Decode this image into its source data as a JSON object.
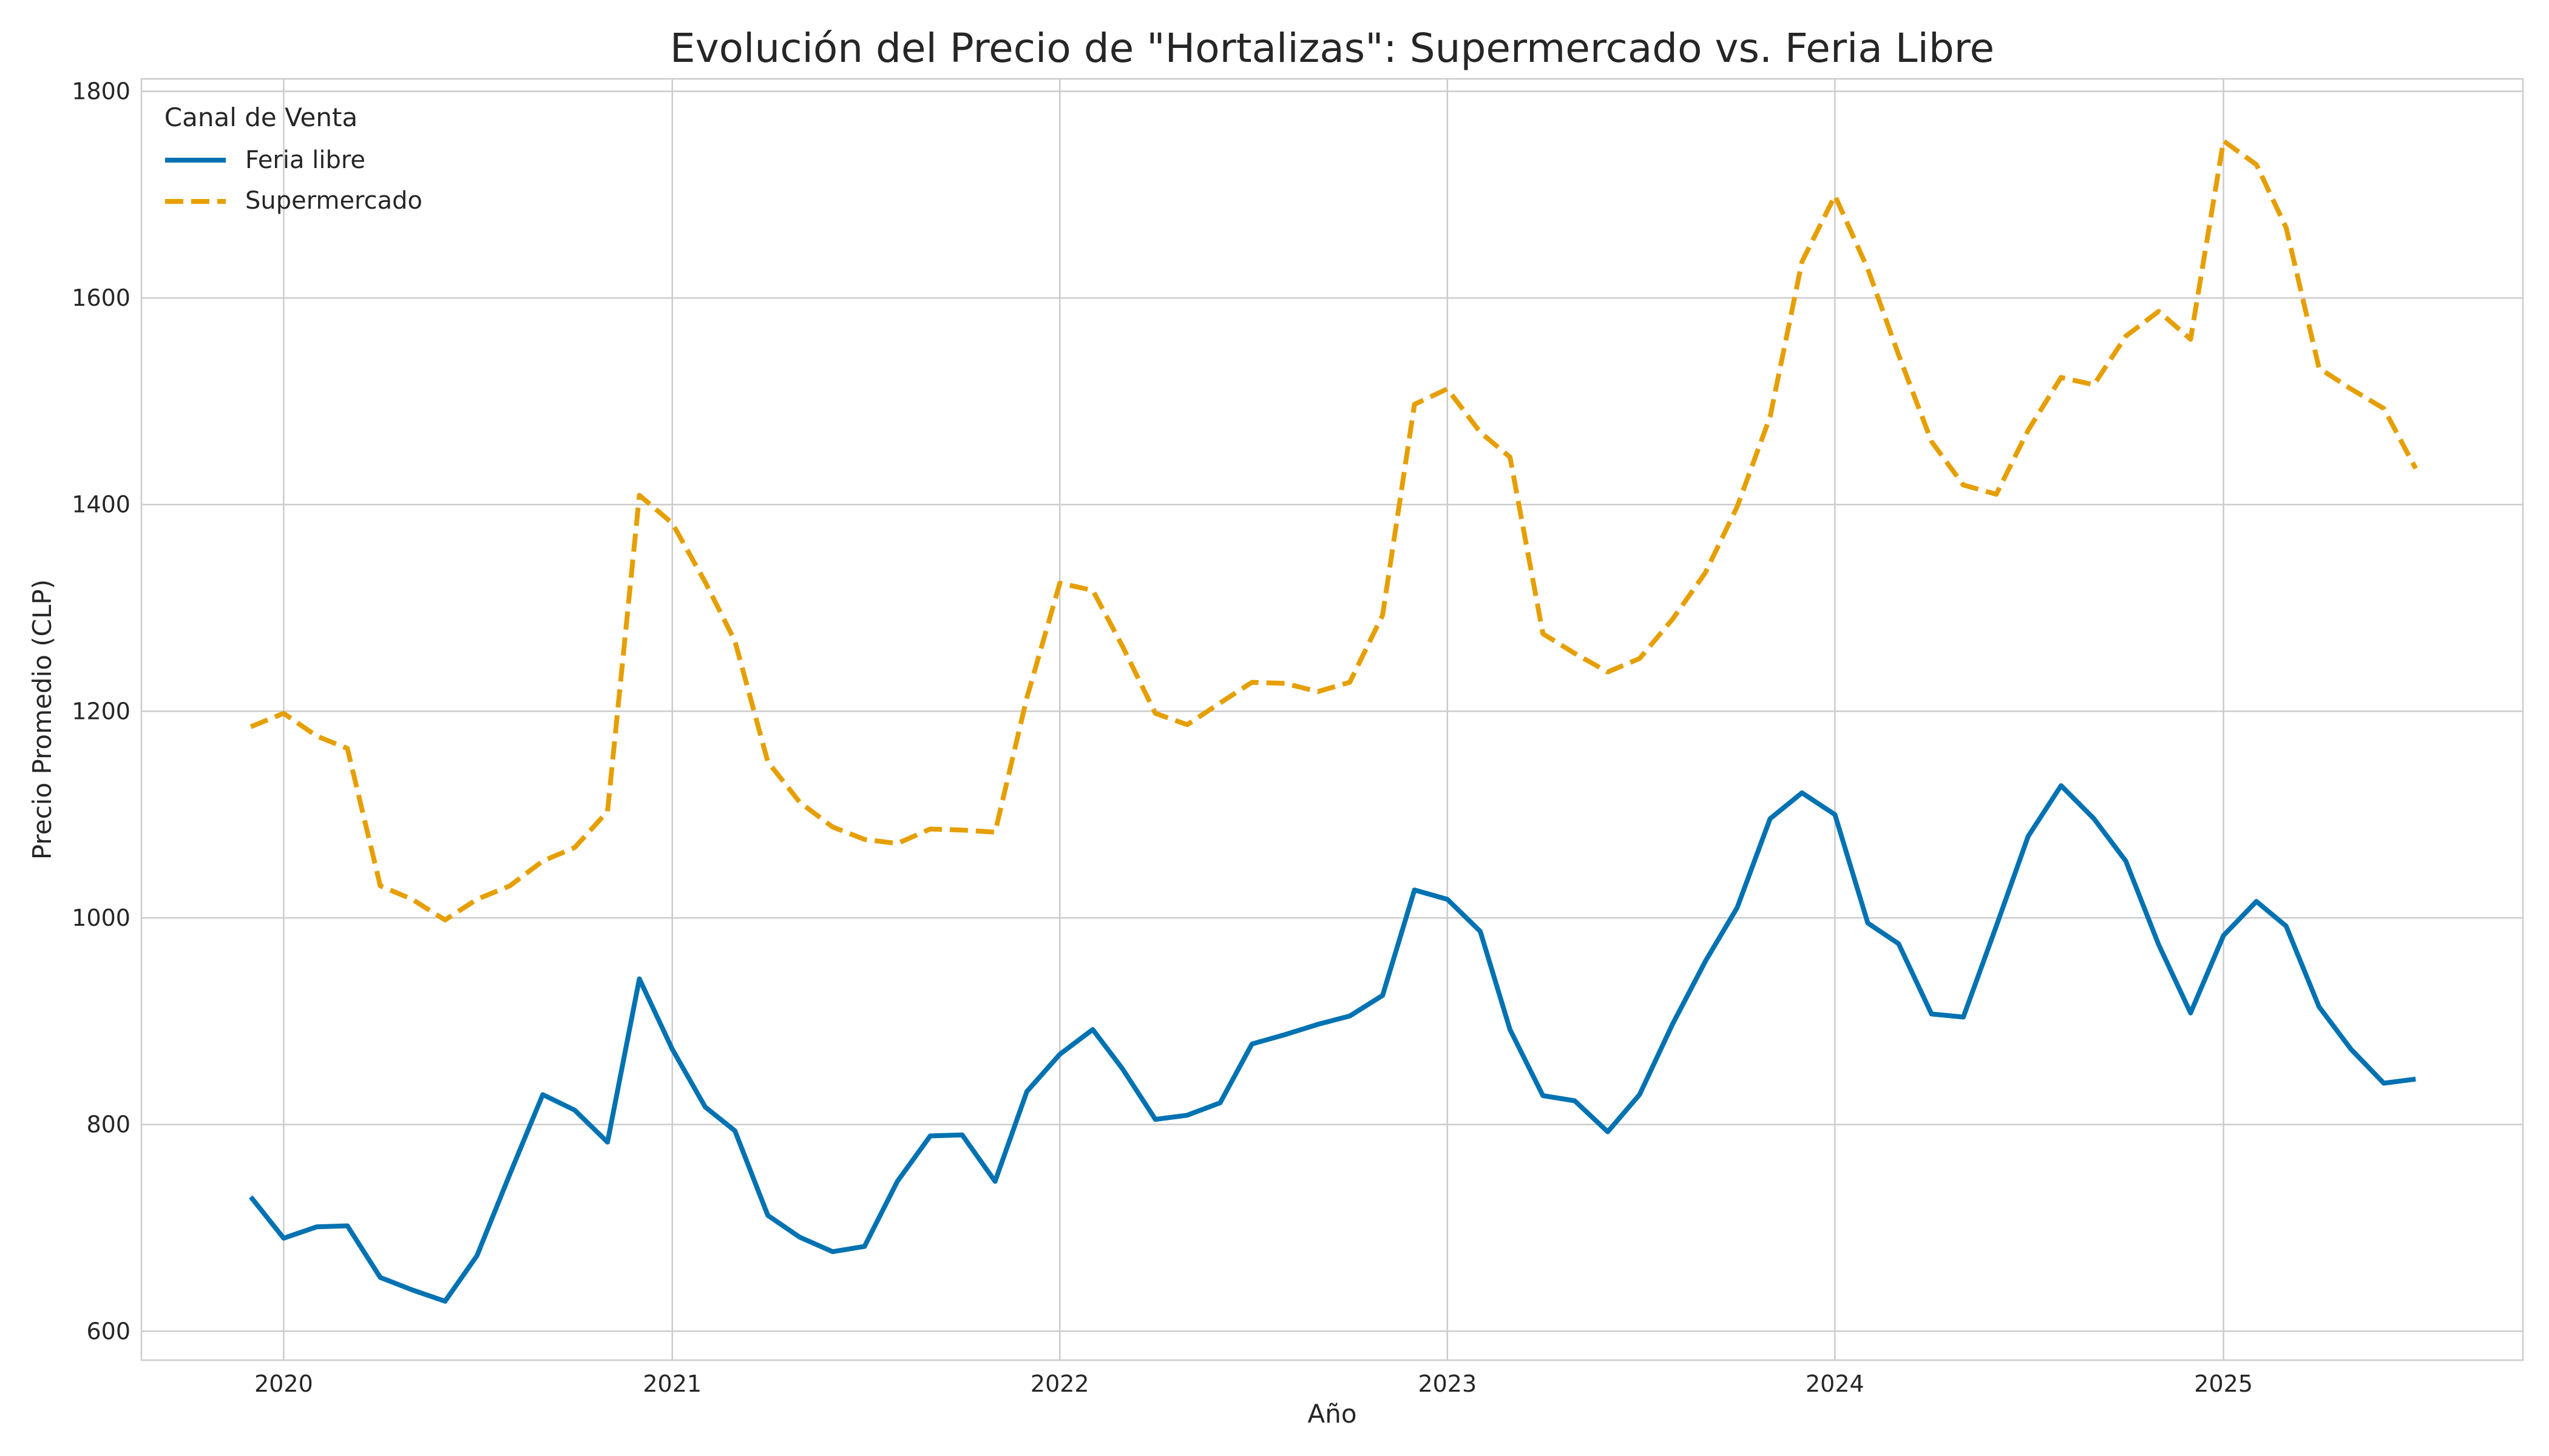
{
  "chart_data": {
    "type": "line",
    "title": "Evolución del Precio de \"Hortalizas\": Supermercado vs. Feria Libre",
    "xlabel": "Año",
    "ylabel": "Precio Promedio (CLP)",
    "xlim": [
      "2019-08-20",
      "2025-10-10"
    ],
    "ylim": [
      572,
      1812
    ],
    "grid": true,
    "x_ticks": [
      "2020",
      "2021",
      "2022",
      "2023",
      "2024",
      "2025"
    ],
    "y_ticks": [
      600,
      800,
      1000,
      1200,
      1400,
      1600,
      1800
    ],
    "legend": {
      "title": "Canal de Venta",
      "position": "top-left"
    },
    "x": [
      "2019-12-01",
      "2020-01-01",
      "2020-02-01",
      "2020-03-01",
      "2020-04-01",
      "2020-05-01",
      "2020-06-01",
      "2020-07-01",
      "2020-08-01",
      "2020-09-01",
      "2020-10-01",
      "2020-11-01",
      "2020-12-01",
      "2021-01-01",
      "2021-02-01",
      "2021-03-01",
      "2021-04-01",
      "2021-05-01",
      "2021-06-01",
      "2021-07-01",
      "2021-08-01",
      "2021-09-01",
      "2021-10-01",
      "2021-11-01",
      "2021-12-01",
      "2022-01-01",
      "2022-02-01",
      "2022-03-01",
      "2022-04-01",
      "2022-05-01",
      "2022-06-01",
      "2022-07-01",
      "2022-08-01",
      "2022-09-01",
      "2022-10-01",
      "2022-11-01",
      "2022-12-01",
      "2023-01-01",
      "2023-02-01",
      "2023-03-01",
      "2023-04-01",
      "2023-05-01",
      "2023-06-01",
      "2023-07-01",
      "2023-08-01",
      "2023-09-01",
      "2023-10-01",
      "2023-11-01",
      "2023-12-01",
      "2024-01-01",
      "2024-02-01",
      "2024-03-01",
      "2024-04-01",
      "2024-05-01",
      "2024-06-01",
      "2024-07-01",
      "2024-08-01",
      "2024-09-01",
      "2024-10-01",
      "2024-11-01",
      "2024-12-01",
      "2025-01-01",
      "2025-02-01",
      "2025-03-01",
      "2025-04-01",
      "2025-05-01",
      "2025-06-01",
      "2025-07-01"
    ],
    "series": [
      {
        "name": "Feria libre",
        "color": "#0072b2",
        "style": "solid",
        "values": [
          730,
          690,
          701,
          702,
          652,
          640,
          629,
          673,
          752,
          829,
          814,
          783,
          941,
          873,
          817,
          794,
          712,
          691,
          677,
          682,
          745,
          789,
          790,
          745,
          832,
          868,
          892,
          854,
          805,
          809,
          821,
          878,
          887,
          897,
          905,
          925,
          1027,
          1018,
          987,
          892,
          828,
          823,
          793,
          829,
          897,
          958,
          1010,
          1096,
          1121,
          1100,
          995,
          975,
          907,
          904,
          992,
          1079,
          1128,
          1096,
          1055,
          974,
          908,
          983,
          1016,
          992,
          914,
          873,
          840,
          844
        ]
      },
      {
        "name": "Supermercado",
        "color": "#e69f00",
        "style": "dashed",
        "values": [
          1185,
          1198,
          1176,
          1164,
          1031,
          1018,
          998,
          1018,
          1031,
          1055,
          1068,
          1103,
          1409,
          1382,
          1325,
          1268,
          1151,
          1112,
          1088,
          1076,
          1072,
          1086,
          1085,
          1083,
          1213,
          1324,
          1317,
          1263,
          1198,
          1187,
          1208,
          1228,
          1227,
          1219,
          1228,
          1293,
          1497,
          1512,
          1470,
          1446,
          1275,
          1256,
          1238,
          1251,
          1289,
          1334,
          1398,
          1485,
          1635,
          1699,
          1628,
          1545,
          1461,
          1419,
          1410,
          1472,
          1523,
          1516,
          1563,
          1587,
          1560,
          1752,
          1729,
          1668,
          1532,
          1512,
          1493,
          1435
        ]
      }
    ]
  }
}
